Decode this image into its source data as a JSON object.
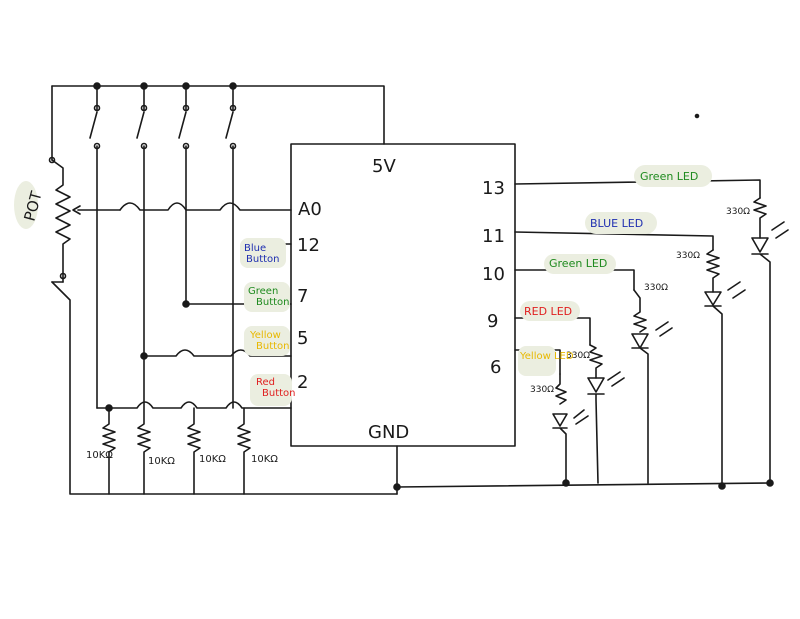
{
  "mcu": {
    "power_label": "5V",
    "ground_label": "GND",
    "left_pins": [
      "A0",
      "12",
      "7",
      "5",
      "2"
    ],
    "right_pins": [
      "13",
      "11",
      "10",
      "9",
      "6"
    ]
  },
  "pot": {
    "label": "POT"
  },
  "resistors": {
    "pulldown": [
      "10KΩ",
      "10KΩ",
      "10KΩ",
      "10KΩ"
    ],
    "led": [
      "330Ω",
      "330Ω",
      "330Ω",
      "330Ω",
      "330Ω"
    ]
  },
  "buttons": [
    {
      "line1": "Blue",
      "line2": "Button",
      "color": "#1f2fb0"
    },
    {
      "line1": "Green",
      "line2": "Button",
      "color": "#1e8a1e"
    },
    {
      "line1": "Yellow",
      "line2": "Button",
      "color": "#e8b800"
    },
    {
      "line1": "Red",
      "line2": "Button",
      "color": "#e02020"
    }
  ],
  "leds": [
    {
      "label": "Green LED",
      "color": "#1e8a1e"
    },
    {
      "label": "BLUE LED",
      "color": "#1f2fb0"
    },
    {
      "label": "Green LED",
      "color": "#1e8a1e"
    },
    {
      "label": "RED LED",
      "color": "#e02020"
    },
    {
      "label": "Yellow LED",
      "color": "#e8b800"
    }
  ],
  "colors": {
    "ink": "#1a1a1a",
    "highlight": "#ebeee0"
  }
}
